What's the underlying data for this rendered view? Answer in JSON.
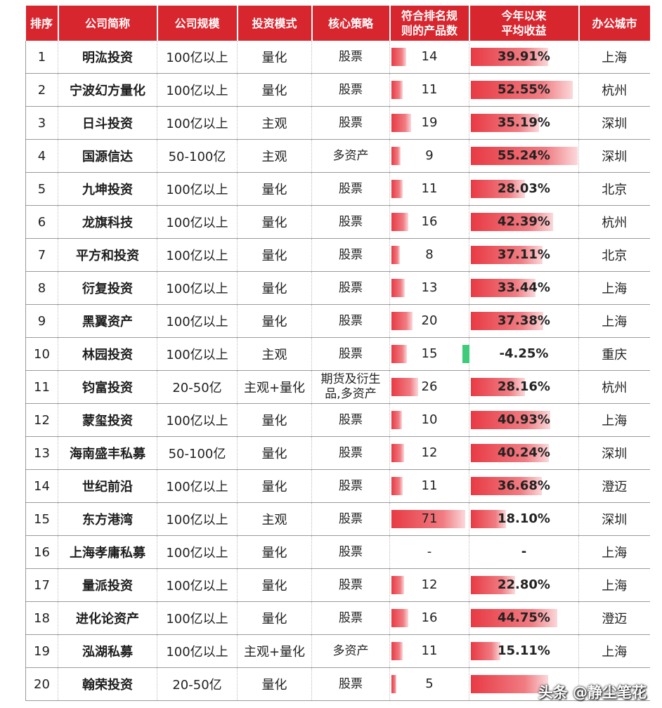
{
  "headers": [
    "排序",
    "公司简称",
    "公司规模",
    "投资模式",
    "核心策略",
    "符合排名规则的产品数",
    "今年以来平均收益",
    "办公城市"
  ],
  "header_lines": [
    [
      "排序"
    ],
    [
      "公司简称"
    ],
    [
      "公司规模"
    ],
    [
      "投资模式"
    ],
    [
      "核心策略"
    ],
    [
      "符合排名规",
      "则的产品数"
    ],
    [
      "今年以来",
      "平均收益"
    ],
    [
      "办公城市"
    ]
  ],
  "colors": {
    "header_bg": "#d8262f",
    "bar_positive": "#e83a44",
    "bar_negative": "#3ecb7a"
  },
  "rows": [
    {
      "rank": "1",
      "name": "明汯投资",
      "scale": "100亿以上",
      "mode": "量化",
      "strategy": "股票",
      "count": "14",
      "count_num": 14,
      "ret": "39.91%",
      "ret_num": 39.91,
      "city": "上海"
    },
    {
      "rank": "2",
      "name": "宁波幻方量化",
      "scale": "100亿以上",
      "mode": "量化",
      "strategy": "股票",
      "count": "11",
      "count_num": 11,
      "ret": "52.55%",
      "ret_num": 52.55,
      "city": "杭州"
    },
    {
      "rank": "3",
      "name": "日斗投资",
      "scale": "100亿以上",
      "mode": "主观",
      "strategy": "股票",
      "count": "19",
      "count_num": 19,
      "ret": "35.19%",
      "ret_num": 35.19,
      "city": "深圳"
    },
    {
      "rank": "4",
      "name": "国源信达",
      "scale": "50-100亿",
      "mode": "主观",
      "strategy": "多资产",
      "count": "9",
      "count_num": 9,
      "ret": "55.24%",
      "ret_num": 55.24,
      "city": "深圳"
    },
    {
      "rank": "5",
      "name": "九坤投资",
      "scale": "100亿以上",
      "mode": "量化",
      "strategy": "股票",
      "count": "11",
      "count_num": 11,
      "ret": "28.03%",
      "ret_num": 28.03,
      "city": "北京"
    },
    {
      "rank": "6",
      "name": "龙旗科技",
      "scale": "100亿以上",
      "mode": "量化",
      "strategy": "股票",
      "count": "16",
      "count_num": 16,
      "ret": "42.39%",
      "ret_num": 42.39,
      "city": "杭州"
    },
    {
      "rank": "7",
      "name": "平方和投资",
      "scale": "100亿以上",
      "mode": "量化",
      "strategy": "股票",
      "count": "8",
      "count_num": 8,
      "ret": "37.11%",
      "ret_num": 37.11,
      "city": "北京"
    },
    {
      "rank": "8",
      "name": "衍复投资",
      "scale": "100亿以上",
      "mode": "量化",
      "strategy": "股票",
      "count": "13",
      "count_num": 13,
      "ret": "33.44%",
      "ret_num": 33.44,
      "city": "上海"
    },
    {
      "rank": "9",
      "name": "黑翼资产",
      "scale": "100亿以上",
      "mode": "量化",
      "strategy": "股票",
      "count": "20",
      "count_num": 20,
      "ret": "37.38%",
      "ret_num": 37.38,
      "city": "上海"
    },
    {
      "rank": "10",
      "name": "林园投资",
      "scale": "100亿以上",
      "mode": "主观",
      "strategy": "股票",
      "count": "15",
      "count_num": 15,
      "ret": "-4.25%",
      "ret_num": -4.25,
      "city": "重庆"
    },
    {
      "rank": "11",
      "name": "钧富投资",
      "scale": "20-50亿",
      "mode": "主观+量化",
      "strategy": "期货及衍生品,多资产",
      "strategy_lines": [
        "期货及衍生",
        "品,多资产"
      ],
      "count": "26",
      "count_num": 26,
      "ret": "28.16%",
      "ret_num": 28.16,
      "city": "杭州"
    },
    {
      "rank": "12",
      "name": "蒙玺投资",
      "scale": "100亿以上",
      "mode": "量化",
      "strategy": "股票",
      "count": "10",
      "count_num": 10,
      "ret": "40.93%",
      "ret_num": 40.93,
      "city": "上海"
    },
    {
      "rank": "13",
      "name": "海南盛丰私募",
      "scale": "50-100亿",
      "mode": "量化",
      "strategy": "股票",
      "count": "12",
      "count_num": 12,
      "ret": "40.24%",
      "ret_num": 40.24,
      "city": "深圳"
    },
    {
      "rank": "14",
      "name": "世纪前沿",
      "scale": "100亿以上",
      "mode": "量化",
      "strategy": "股票",
      "count": "11",
      "count_num": 11,
      "ret": "36.68%",
      "ret_num": 36.68,
      "city": "澄迈"
    },
    {
      "rank": "15",
      "name": "东方港湾",
      "scale": "100亿以上",
      "mode": "主观",
      "strategy": "股票",
      "count": "71",
      "count_num": 71,
      "ret": "18.10%",
      "ret_num": 18.1,
      "city": "深圳"
    },
    {
      "rank": "16",
      "name": "上海孝庸私募",
      "scale": "100亿以上",
      "mode": "量化",
      "strategy": "股票",
      "count": "-",
      "count_num": 0,
      "ret": "-",
      "ret_num": 0,
      "city": "上海"
    },
    {
      "rank": "17",
      "name": "量派投资",
      "scale": "100亿以上",
      "mode": "量化",
      "strategy": "股票",
      "count": "12",
      "count_num": 12,
      "ret": "22.80%",
      "ret_num": 22.8,
      "city": "上海"
    },
    {
      "rank": "18",
      "name": "进化论资产",
      "scale": "100亿以上",
      "mode": "量化",
      "strategy": "股票",
      "count": "16",
      "count_num": 16,
      "ret": "44.75%",
      "ret_num": 44.75,
      "city": "澄迈"
    },
    {
      "rank": "19",
      "name": "泓湖私募",
      "scale": "100亿以上",
      "mode": "主观+量化",
      "strategy": "多资产",
      "count": "11",
      "count_num": 11,
      "ret": "15.11%",
      "ret_num": 15.11,
      "city": "上海"
    },
    {
      "rank": "20",
      "name": "翰荣投资",
      "scale": "20-50亿",
      "mode": "量化",
      "strategy": "股票",
      "count": "5",
      "count_num": 5,
      "ret": "",
      "ret_num": 40.0,
      "city": ""
    }
  ],
  "watermark": "头条 @静尘笔花"
}
